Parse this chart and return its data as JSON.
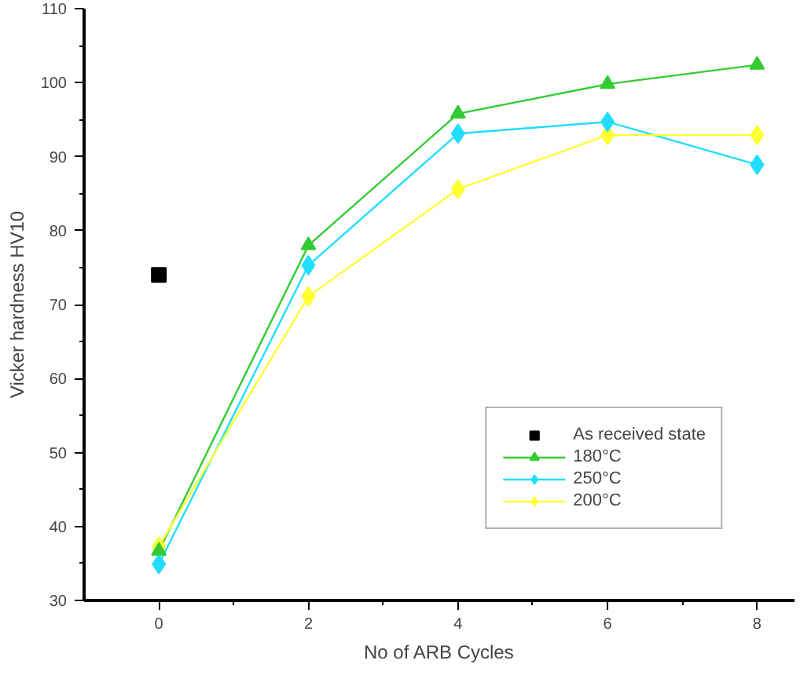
{
  "chart_data": {
    "type": "line",
    "xlabel": "No of ARB Cycles",
    "ylabel": "Vicker hardness HV10",
    "xlim": [
      -1,
      8.5
    ],
    "xticks": [
      0,
      2,
      4,
      6,
      8
    ],
    "ylim": [
      30,
      110
    ],
    "yticks": [
      30,
      40,
      50,
      60,
      70,
      80,
      90,
      100,
      110
    ],
    "grid": false,
    "legend": "bottom right",
    "series": [
      {
        "name": "As received state",
        "color": "#000000",
        "marker": "square",
        "x": [
          0
        ],
        "values": [
          74
        ]
      },
      {
        "name": "180°C",
        "color": "#33cc33",
        "marker": "triangle",
        "x": [
          0,
          2,
          4,
          6,
          8
        ],
        "values": [
          36.7,
          78,
          95.8,
          99.8,
          102.4
        ]
      },
      {
        "name": "250°C",
        "color": "#22ddff",
        "marker": "diamond",
        "x": [
          0,
          2,
          4,
          6,
          8
        ],
        "values": [
          34.9,
          75.3,
          93.1,
          94.7,
          88.9
        ]
      },
      {
        "name": "200°C",
        "color": "#ffff33",
        "marker": "diamond",
        "x": [
          0,
          2,
          4,
          6,
          8
        ],
        "values": [
          37.3,
          71.1,
          85.6,
          92.9,
          92.9
        ]
      }
    ]
  }
}
